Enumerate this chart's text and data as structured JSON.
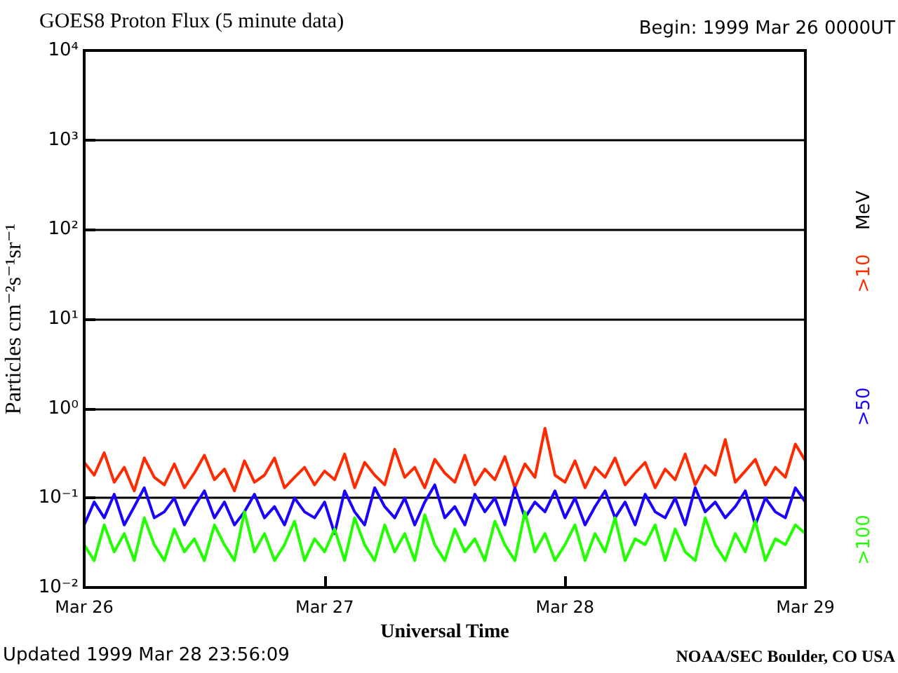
{
  "chart_data": {
    "type": "line",
    "title": "GOES8 Proton Flux (5 minute data)",
    "xlabel": "Universal Time",
    "ylabel": "Particles cm⁻²s⁻¹sr⁻¹",
    "legend_title": "MeV",
    "legend": "right",
    "grid": "y",
    "log": "y",
    "ylim": [
      0.01,
      10000
    ],
    "yticks": [
      {
        "value": 0.01,
        "label": "10⁻²"
      },
      {
        "value": 0.1,
        "label": "10⁻¹"
      },
      {
        "value": 1,
        "label": "10⁰"
      },
      {
        "value": 10,
        "label": "10¹"
      },
      {
        "value": 100,
        "label": "10²"
      },
      {
        "value": 1000,
        "label": "10³"
      },
      {
        "value": 10000,
        "label": "10⁴"
      }
    ],
    "xlim": [
      "1999-03-26",
      "1999-03-29"
    ],
    "xticks": [
      {
        "value": "1999-03-26",
        "label": "Mar 26"
      },
      {
        "value": "1999-03-27",
        "label": "Mar 27"
      },
      {
        "value": "1999-03-28",
        "label": "Mar 28"
      },
      {
        "value": "1999-03-29",
        "label": "Mar 29"
      }
    ],
    "annotations": [
      "Begin: 1999 Mar 26 0000UT",
      "Updated 1999 Mar 28 23:56:09",
      "NOAA/SEC Boulder, CO USA"
    ],
    "series": [
      {
        "name": ">10",
        "color": "#ff2a00",
        "values": [
          0.25,
          0.18,
          0.32,
          0.15,
          0.22,
          0.12,
          0.28,
          0.17,
          0.14,
          0.24,
          0.13,
          0.19,
          0.3,
          0.16,
          0.21,
          0.12,
          0.26,
          0.15,
          0.18,
          0.28,
          0.13,
          0.17,
          0.22,
          0.14,
          0.2,
          0.16,
          0.31,
          0.13,
          0.25,
          0.18,
          0.14,
          0.35,
          0.17,
          0.22,
          0.13,
          0.27,
          0.19,
          0.15,
          0.3,
          0.14,
          0.21,
          0.16,
          0.29,
          0.13,
          0.24,
          0.17,
          0.6,
          0.18,
          0.15,
          0.26,
          0.13,
          0.22,
          0.17,
          0.28,
          0.14,
          0.19,
          0.25,
          0.13,
          0.21,
          0.16,
          0.31,
          0.14,
          0.23,
          0.18,
          0.45,
          0.15,
          0.2,
          0.27,
          0.14,
          0.22,
          0.17,
          0.4,
          0.26
        ]
      },
      {
        "name": ">50",
        "color": "#1a00ff",
        "values": [
          0.05,
          0.09,
          0.06,
          0.11,
          0.05,
          0.08,
          0.13,
          0.06,
          0.07,
          0.1,
          0.05,
          0.08,
          0.12,
          0.06,
          0.09,
          0.05,
          0.07,
          0.11,
          0.06,
          0.08,
          0.05,
          0.1,
          0.07,
          0.06,
          0.09,
          0.04,
          0.12,
          0.07,
          0.05,
          0.13,
          0.08,
          0.06,
          0.1,
          0.05,
          0.09,
          0.14,
          0.06,
          0.08,
          0.05,
          0.11,
          0.07,
          0.1,
          0.05,
          0.13,
          0.06,
          0.09,
          0.07,
          0.12,
          0.06,
          0.1,
          0.05,
          0.08,
          0.12,
          0.06,
          0.09,
          0.05,
          0.11,
          0.07,
          0.06,
          0.1,
          0.05,
          0.13,
          0.07,
          0.09,
          0.06,
          0.08,
          0.12,
          0.05,
          0.1,
          0.07,
          0.06,
          0.13,
          0.09
        ]
      },
      {
        "name": ">100",
        "color": "#22ff00",
        "values": [
          0.03,
          0.02,
          0.05,
          0.025,
          0.04,
          0.02,
          0.06,
          0.03,
          0.02,
          0.045,
          0.025,
          0.035,
          0.02,
          0.05,
          0.03,
          0.02,
          0.07,
          0.025,
          0.04,
          0.02,
          0.03,
          0.055,
          0.02,
          0.035,
          0.025,
          0.045,
          0.02,
          0.06,
          0.03,
          0.02,
          0.05,
          0.025,
          0.04,
          0.02,
          0.065,
          0.03,
          0.02,
          0.045,
          0.025,
          0.035,
          0.02,
          0.055,
          0.03,
          0.02,
          0.07,
          0.025,
          0.04,
          0.02,
          0.03,
          0.05,
          0.02,
          0.04,
          0.025,
          0.06,
          0.02,
          0.035,
          0.03,
          0.05,
          0.02,
          0.045,
          0.025,
          0.02,
          0.06,
          0.03,
          0.02,
          0.04,
          0.025,
          0.055,
          0.02,
          0.035,
          0.03,
          0.05,
          0.04
        ]
      }
    ],
    "x": [
      "1999-03-26T00:00",
      "1999-03-26T01:00",
      "1999-03-26T02:00",
      "1999-03-26T03:00",
      "1999-03-26T04:00",
      "1999-03-26T05:00",
      "1999-03-26T06:00",
      "1999-03-26T07:00",
      "1999-03-26T08:00",
      "1999-03-26T09:00",
      "1999-03-26T10:00",
      "1999-03-26T11:00",
      "1999-03-26T12:00",
      "1999-03-26T13:00",
      "1999-03-26T14:00",
      "1999-03-26T15:00",
      "1999-03-26T16:00",
      "1999-03-26T17:00",
      "1999-03-26T18:00",
      "1999-03-26T19:00",
      "1999-03-26T20:00",
      "1999-03-26T21:00",
      "1999-03-26T22:00",
      "1999-03-26T23:00",
      "1999-03-27T00:00",
      "1999-03-27T01:00",
      "1999-03-27T02:00",
      "1999-03-27T03:00",
      "1999-03-27T04:00",
      "1999-03-27T05:00",
      "1999-03-27T06:00",
      "1999-03-27T07:00",
      "1999-03-27T08:00",
      "1999-03-27T09:00",
      "1999-03-27T10:00",
      "1999-03-27T11:00",
      "1999-03-27T12:00",
      "1999-03-27T13:00",
      "1999-03-27T14:00",
      "1999-03-27T15:00",
      "1999-03-27T16:00",
      "1999-03-27T17:00",
      "1999-03-27T18:00",
      "1999-03-27T19:00",
      "1999-03-27T20:00",
      "1999-03-27T21:00",
      "1999-03-27T22:00",
      "1999-03-27T23:00",
      "1999-03-28T00:00",
      "1999-03-28T01:00",
      "1999-03-28T02:00",
      "1999-03-28T03:00",
      "1999-03-28T04:00",
      "1999-03-28T05:00",
      "1999-03-28T06:00",
      "1999-03-28T07:00",
      "1999-03-28T08:00",
      "1999-03-28T09:00",
      "1999-03-28T10:00",
      "1999-03-28T11:00",
      "1999-03-28T12:00",
      "1999-03-28T13:00",
      "1999-03-28T14:00",
      "1999-03-28T15:00",
      "1999-03-28T16:00",
      "1999-03-28T17:00",
      "1999-03-28T18:00",
      "1999-03-28T19:00",
      "1999-03-28T20:00",
      "1999-03-28T21:00",
      "1999-03-28T22:00",
      "1999-03-28T23:00",
      "1999-03-29T00:00"
    ]
  }
}
